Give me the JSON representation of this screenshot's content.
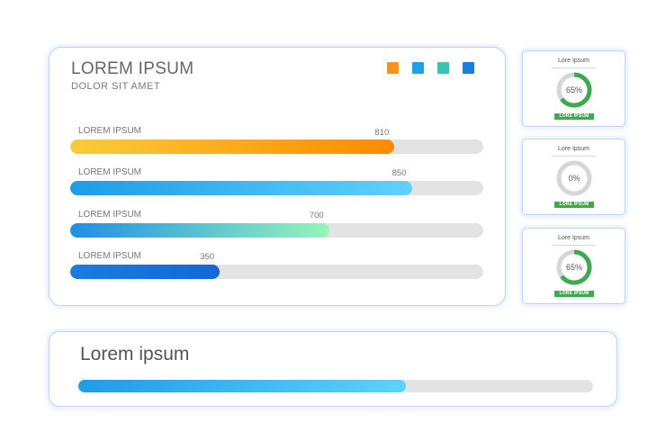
{
  "main_card": {
    "title": "LOREM IPSUM",
    "subtitle": "DOLOR SIT AMET",
    "legend_icons": [
      {
        "name": "orange-square-icon",
        "color": "#f7941d"
      },
      {
        "name": "blue-square-icon",
        "color": "#1fa0e8"
      },
      {
        "name": "teal-square-icon",
        "color": "#3cc3b0"
      },
      {
        "name": "dark-blue-square-icon",
        "color": "#1a7de0"
      }
    ],
    "bars": [
      {
        "label": "LOREM IPSUM",
        "value": "810",
        "fraction": 0.785,
        "color_from": "#fbcb3b",
        "color_to": "#ff8a00"
      },
      {
        "label": "LOREM IPSUM",
        "value": "850",
        "fraction": 0.827,
        "color_from": "#1f9be8",
        "color_to": "#5ed2fb"
      },
      {
        "label": "LOREM IPSUM",
        "value": "700",
        "fraction": 0.627,
        "color_from": "#1f8fe6",
        "color_to": "#96f5ba"
      },
      {
        "label": "LOREM IPSUM",
        "value": "350",
        "fraction": 0.362,
        "color_from": "#1a7de0",
        "color_to": "#1466d6"
      }
    ]
  },
  "side_cards": [
    {
      "title": "Lore Ipsum",
      "percent_label": "65%",
      "percent": 0.65,
      "badge": "LORE IPSUM",
      "ring_color": "#3eaa4e"
    },
    {
      "title": "Lore Ipsum",
      "percent_label": "0%",
      "percent": 0.0,
      "badge": "LORE IPSUM",
      "ring_color": "#3eaa4e"
    },
    {
      "title": "Lore Ipsum",
      "percent_label": "65%",
      "percent": 0.65,
      "badge": "LORE IPSUM",
      "ring_color": "#3eaa4e"
    }
  ],
  "bottom_card": {
    "title": "Lorem ipsum",
    "fraction": 0.636,
    "color_from": "#1f9be8",
    "color_to": "#5ed2fb"
  },
  "colors": {
    "track": "#e3e3e3",
    "ring_track": "#d6d6d6",
    "card_border": "#b9d3f3"
  }
}
